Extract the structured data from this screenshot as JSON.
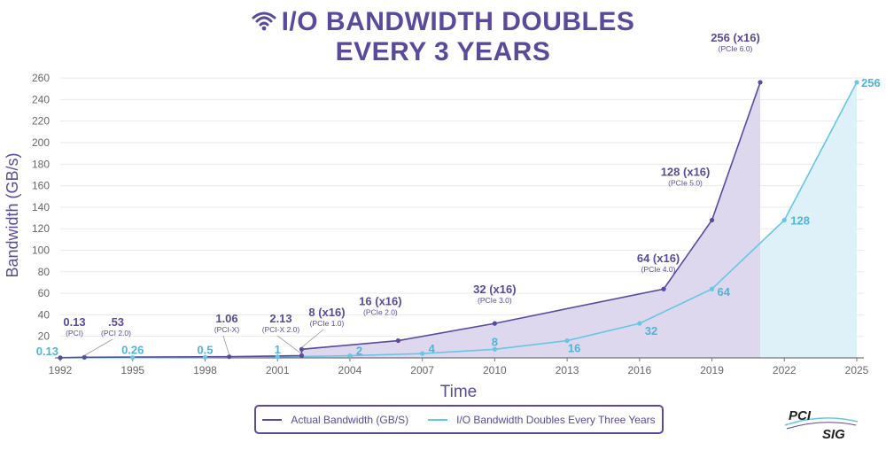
{
  "title": {
    "line1": "I/O BANDWIDTH DOUBLES",
    "line2": "EVERY 3 YEARS",
    "icon": "wifi-icon"
  },
  "logo": {
    "line1": "PCI",
    "line2": "SIG"
  },
  "colors": {
    "actual": "#5b4a9c",
    "doubles": "#66c6e4",
    "actual_fill": "#ddd8ee",
    "doubles_fill": "#dff1f8",
    "title": "#5b4a9c",
    "axis_text": "#666666"
  },
  "chart_data": {
    "type": "line",
    "xlabel": "Time",
    "ylabel": "Bandwidth (GB/s)",
    "xlim": [
      1992,
      2025
    ],
    "ylim": [
      0,
      265
    ],
    "x_ticks": [
      "1992",
      "1995",
      "1998",
      "2001",
      "2004",
      "2007",
      "2010",
      "2013",
      "2016",
      "2019",
      "2022",
      "2025"
    ],
    "y_ticks": [
      "20",
      "40",
      "60",
      "80",
      "100",
      "120",
      "140",
      "160",
      "180",
      "200",
      "220",
      "240",
      "260"
    ],
    "grid": true,
    "legend_position": "bottom-center",
    "series": [
      {
        "name": "Actual Bandwidth (GB/S)",
        "points": [
          {
            "x": 1992,
            "y": 0.13,
            "label": "",
            "sublabel": ""
          },
          {
            "x": 1993,
            "y": 0.53,
            "label": "",
            "sublabel": ""
          },
          {
            "x": 1999,
            "y": 1.06,
            "label": "",
            "sublabel": ""
          },
          {
            "x": 2002,
            "y": 2.13,
            "label": "",
            "sublabel": ""
          },
          {
            "x": 2002,
            "y": 8,
            "label": "",
            "sublabel": ""
          },
          {
            "x": 2006,
            "y": 16,
            "label": "16 (x16)",
            "sublabel": "(PCIe 2.0)"
          },
          {
            "x": 2010,
            "y": 32,
            "label": "32 (x16)",
            "sublabel": "(PCIe 3.0)"
          },
          {
            "x": 2017,
            "y": 64,
            "label": "64 (x16)",
            "sublabel": "(PCIe 4.0)"
          },
          {
            "x": 2019,
            "y": 128,
            "label": "128 (x16)",
            "sublabel": "(PCIe 5.0)"
          },
          {
            "x": 2021,
            "y": 256,
            "label": "256 (x16)",
            "sublabel": "(PCIe 6.0)"
          }
        ]
      },
      {
        "name": "I/O Bandwidth Doubles Every Three Years",
        "points": [
          {
            "x": 1992,
            "y": 0.13,
            "label": "0.13"
          },
          {
            "x": 1995,
            "y": 0.26,
            "label": "0.26"
          },
          {
            "x": 1998,
            "y": 0.5,
            "label": "0.5"
          },
          {
            "x": 2001,
            "y": 1,
            "label": "1"
          },
          {
            "x": 2004,
            "y": 2,
            "label": "2"
          },
          {
            "x": 2007,
            "y": 4,
            "label": "4"
          },
          {
            "x": 2010,
            "y": 8,
            "label": "8"
          },
          {
            "x": 2013,
            "y": 16,
            "label": "16"
          },
          {
            "x": 2016,
            "y": 32,
            "label": "32"
          },
          {
            "x": 2019,
            "y": 64,
            "label": "64"
          },
          {
            "x": 2022,
            "y": 128,
            "label": "128"
          },
          {
            "x": 2025,
            "y": 256,
            "label": "256"
          }
        ]
      }
    ],
    "annotations": [
      {
        "x": 1992,
        "y": 0.13,
        "label": "0.13",
        "sublabel": "(PCI)"
      },
      {
        "x": 1993,
        "y": 0.53,
        "label": ".53",
        "sublabel": "(PCI 2.0)"
      },
      {
        "x": 1999,
        "y": 1.06,
        "label": "1.06",
        "sublabel": "(PCI-X)"
      },
      {
        "x": 2002,
        "y": 2.13,
        "label": "2.13",
        "sublabel": "(PCI-X 2.0)"
      },
      {
        "x": 2002,
        "y": 8,
        "label": "8 (x16)",
        "sublabel": "(PCIe 1.0)"
      }
    ]
  }
}
